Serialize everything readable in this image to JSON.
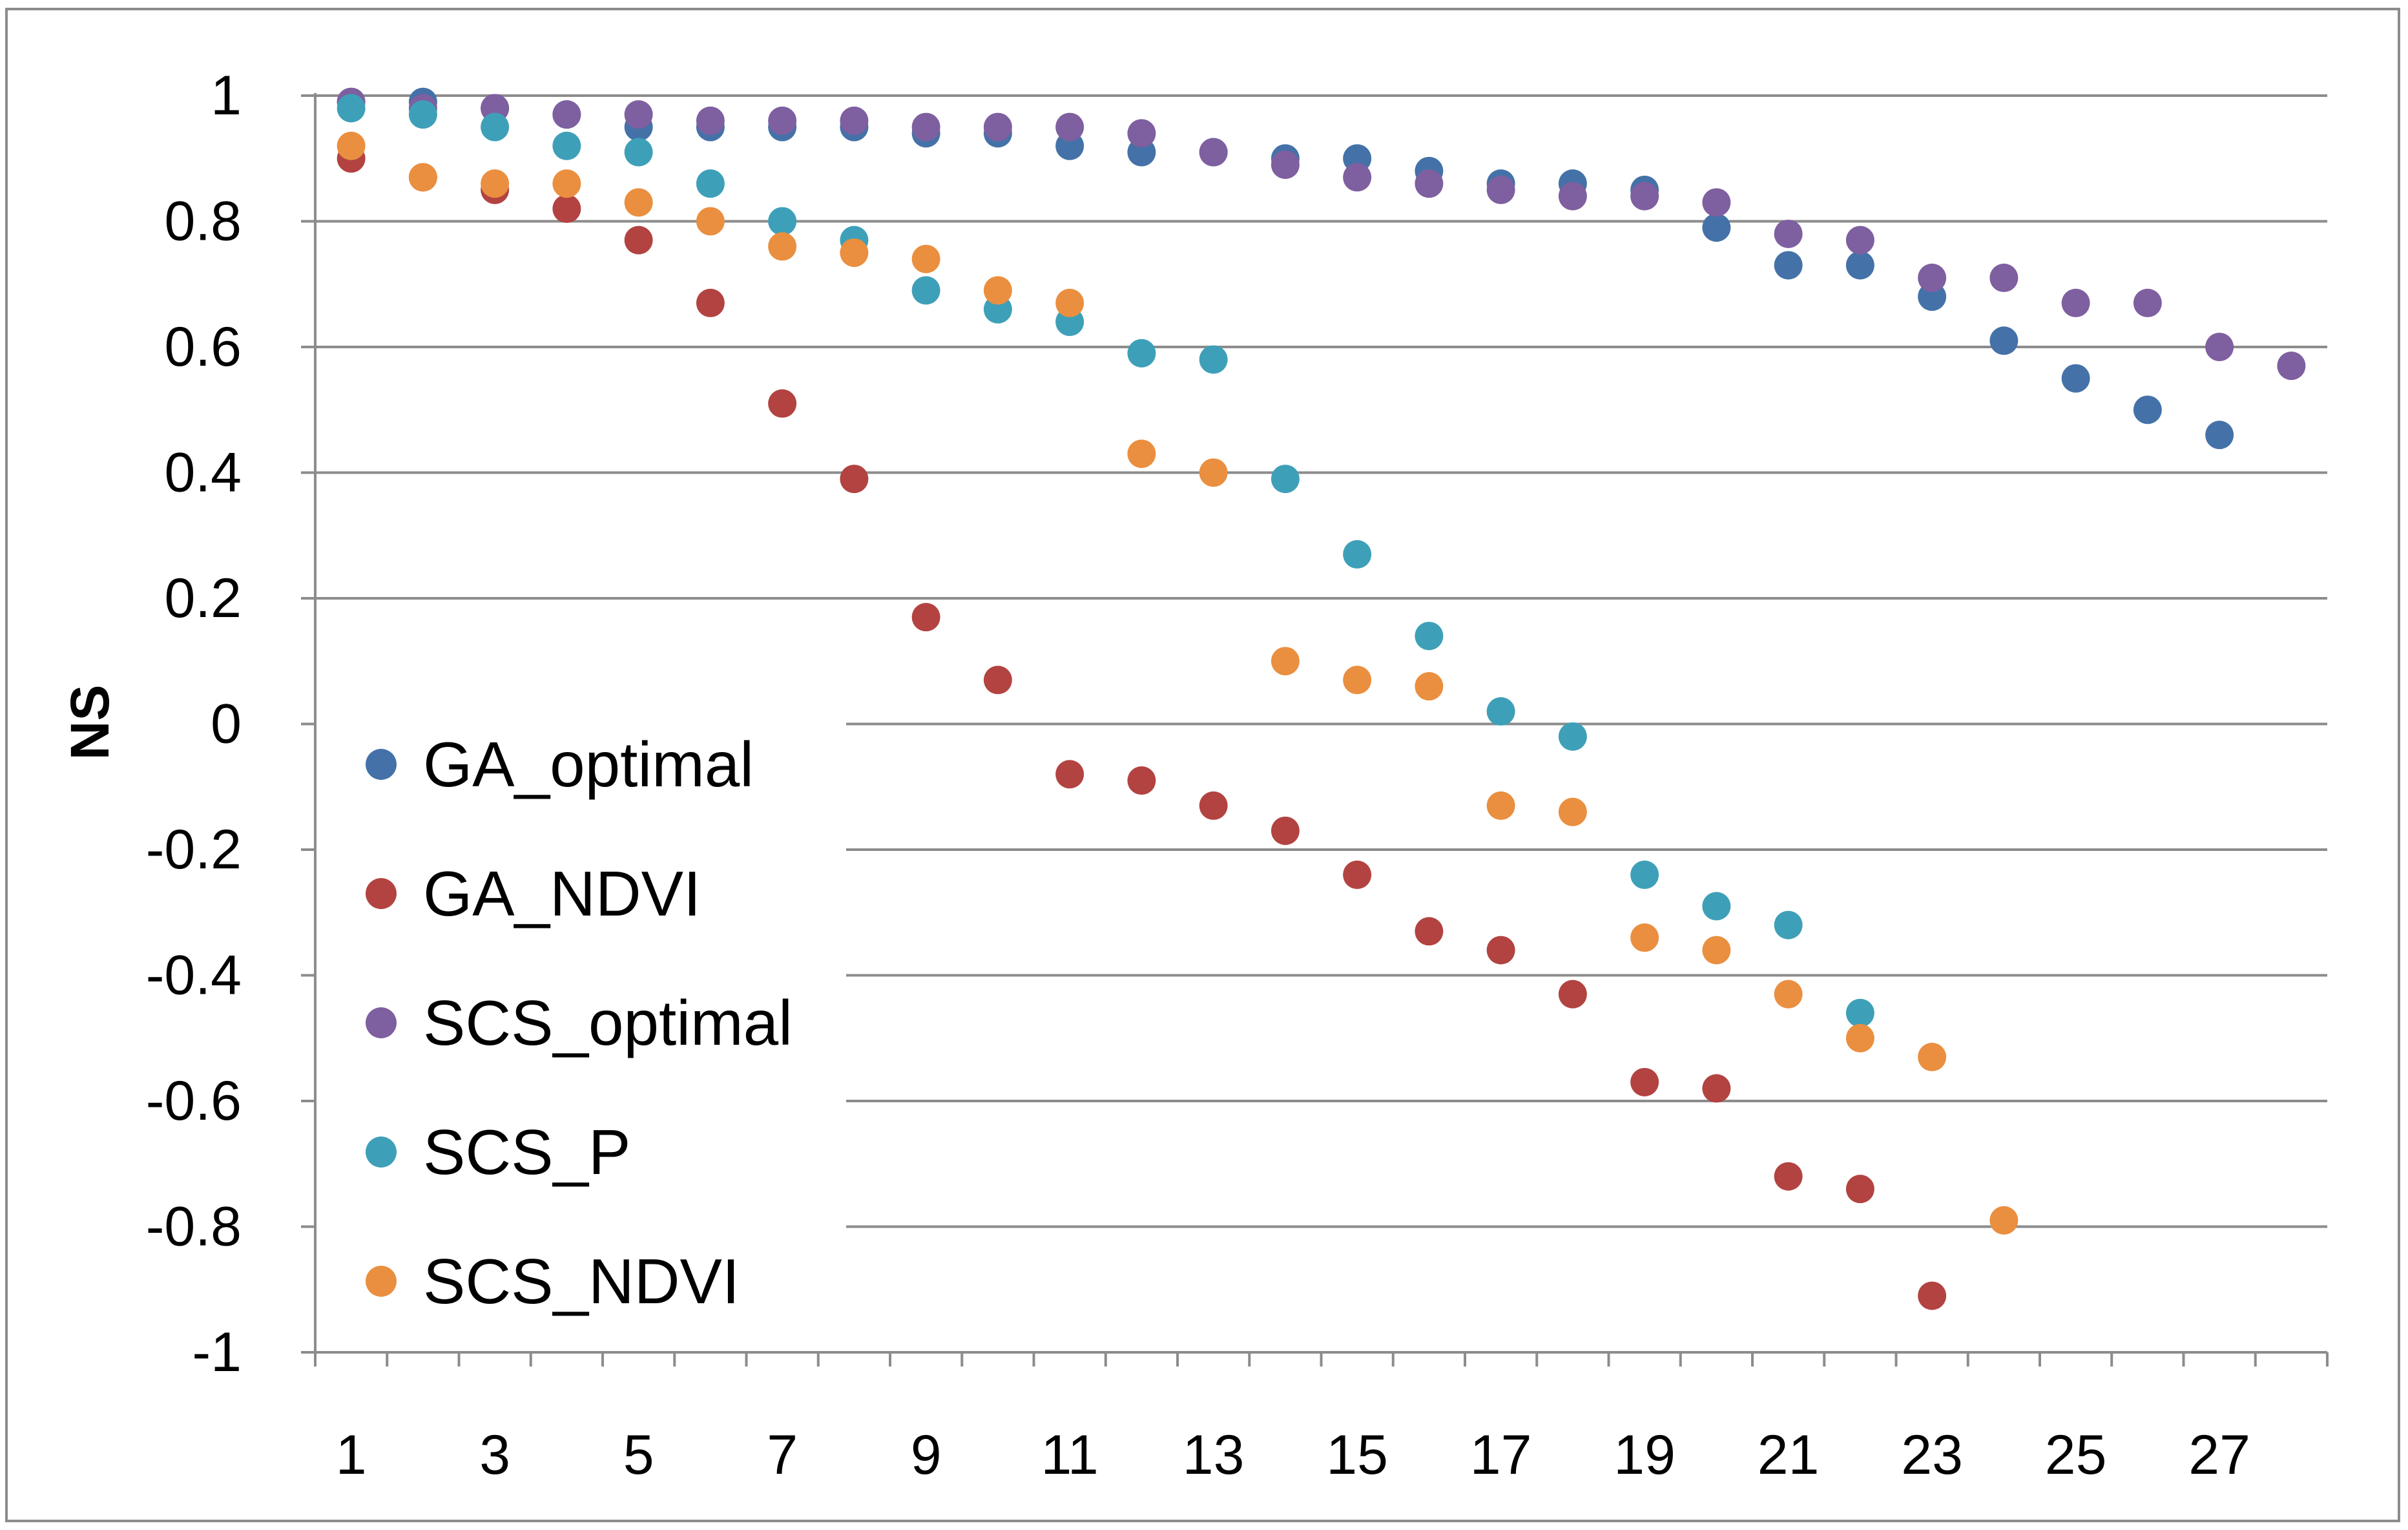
{
  "chart_data": {
    "type": "scatter",
    "title": "",
    "xlabel": "",
    "ylabel": "NS",
    "xlim": [
      0.5,
      28.5
    ],
    "ylim": [
      -1,
      1
    ],
    "x_ticks": [
      1,
      3,
      5,
      7,
      9,
      11,
      13,
      15,
      17,
      19,
      21,
      23,
      25,
      27
    ],
    "y_ticks": [
      1,
      0.8,
      0.6,
      0.4,
      0.2,
      0,
      -0.2,
      -0.4,
      -0.6,
      -0.8,
      -1
    ],
    "grid": "horizontal",
    "legend_position": "left",
    "series": [
      {
        "name": "GA_optimal",
        "color": "#4472a8",
        "x": [
          1,
          2,
          3,
          4,
          5,
          6,
          7,
          8,
          9,
          10,
          11,
          12,
          13,
          14,
          15,
          16,
          17,
          18,
          19,
          20,
          21,
          22,
          23,
          24,
          25,
          26,
          27
        ],
        "y": [
          0.99,
          0.99,
          0.98,
          0.97,
          0.95,
          0.95,
          0.95,
          0.95,
          0.94,
          0.94,
          0.92,
          0.91,
          0.91,
          0.9,
          0.9,
          0.88,
          0.86,
          0.86,
          0.85,
          0.79,
          0.73,
          0.73,
          0.68,
          0.61,
          0.55,
          0.5,
          0.46
        ]
      },
      {
        "name": "GA_NDVI",
        "color": "#b24341",
        "x": [
          1,
          2,
          3,
          4,
          5,
          6,
          7,
          8,
          9,
          10,
          11,
          12,
          13,
          14,
          15,
          16,
          17,
          18,
          19,
          20,
          21,
          22,
          23
        ],
        "y": [
          0.9,
          0.87,
          0.85,
          0.82,
          0.77,
          0.67,
          0.51,
          0.39,
          0.17,
          0.07,
          -0.08,
          -0.09,
          -0.13,
          -0.17,
          -0.24,
          -0.33,
          -0.36,
          -0.43,
          -0.57,
          -0.58,
          -0.72,
          -0.74,
          -0.91
        ]
      },
      {
        "name": "SCS_optimal",
        "color": "#7e5fa0",
        "x": [
          1,
          2,
          3,
          4,
          5,
          6,
          7,
          8,
          9,
          10,
          11,
          12,
          13,
          14,
          15,
          16,
          17,
          18,
          19,
          20,
          21,
          22,
          23,
          24,
          25,
          26,
          27,
          28
        ],
        "y": [
          0.99,
          0.98,
          0.98,
          0.97,
          0.97,
          0.96,
          0.96,
          0.96,
          0.95,
          0.95,
          0.95,
          0.94,
          0.91,
          0.89,
          0.87,
          0.86,
          0.85,
          0.84,
          0.84,
          0.83,
          0.78,
          0.77,
          0.71,
          0.71,
          0.67,
          0.67,
          0.6,
          0.57
        ]
      },
      {
        "name": "SCS_P",
        "color": "#3ea0b8",
        "x": [
          1,
          2,
          3,
          4,
          5,
          6,
          7,
          8,
          9,
          10,
          11,
          12,
          13,
          14,
          15,
          16,
          17,
          18,
          19,
          20,
          21,
          22
        ],
        "y": [
          0.98,
          0.97,
          0.95,
          0.92,
          0.91,
          0.86,
          0.8,
          0.77,
          0.69,
          0.66,
          0.64,
          0.59,
          0.58,
          0.39,
          0.27,
          0.14,
          0.02,
          -0.02,
          -0.24,
          -0.29,
          -0.32,
          -0.46
        ]
      },
      {
        "name": "SCS_NDVI",
        "color": "#ea8f3f",
        "x": [
          1,
          2,
          3,
          4,
          5,
          6,
          7,
          8,
          9,
          10,
          11,
          12,
          13,
          14,
          15,
          16,
          17,
          18,
          19,
          20,
          21,
          22,
          23,
          24
        ],
        "y": [
          0.92,
          0.87,
          0.86,
          0.86,
          0.83,
          0.8,
          0.76,
          0.75,
          0.74,
          0.69,
          0.67,
          0.43,
          0.4,
          0.1,
          0.07,
          0.06,
          -0.13,
          -0.14,
          -0.34,
          -0.36,
          -0.43,
          -0.5,
          -0.53,
          -0.79
        ]
      }
    ]
  },
  "style": {
    "gridline_color": "#8c8c8c",
    "axis_color": "#8c8c8c",
    "text_color": "#000000"
  }
}
